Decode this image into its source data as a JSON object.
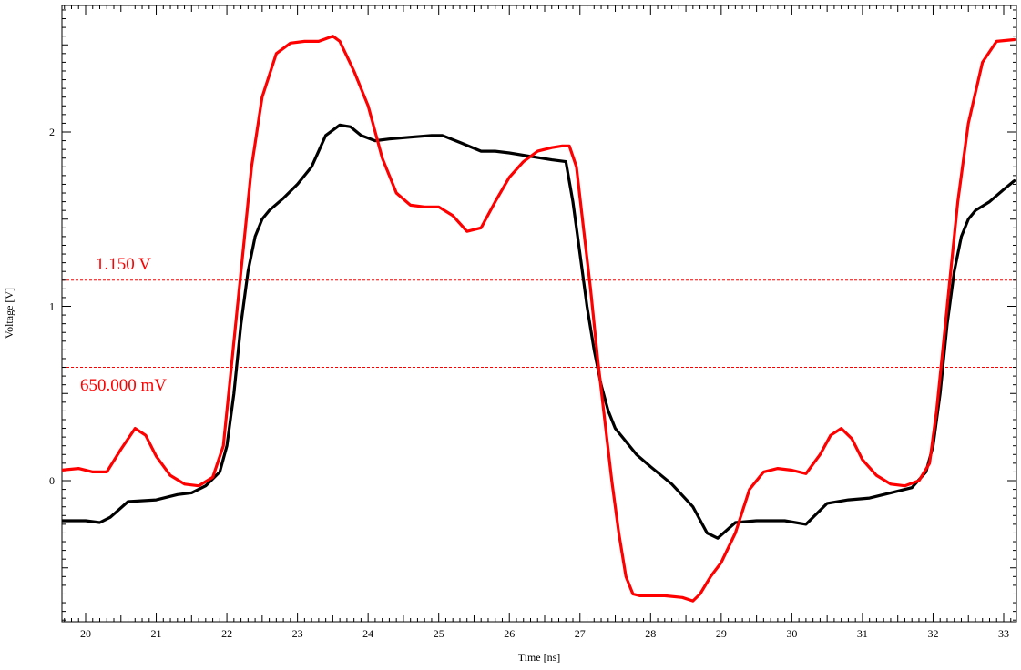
{
  "chart_data": {
    "type": "line",
    "xlabel": "Time [ns]",
    "ylabel": "Voltage [V]",
    "xlim": [
      19.65,
      33.15
    ],
    "ylim": [
      -0.8,
      2.7
    ],
    "x_ticks": [
      "20",
      "21",
      "22",
      "23",
      "24",
      "25",
      "26",
      "27",
      "28",
      "29",
      "30",
      "31",
      "32",
      "33"
    ],
    "y_ticks": [
      "0",
      "1",
      "2"
    ],
    "grid": false,
    "reference_lines": [
      {
        "value": 1.15,
        "label": "1.150 V",
        "color": "#ff0000"
      },
      {
        "value": 0.65,
        "label": "650.000 mV",
        "color": "#ff0000"
      }
    ],
    "series": [
      {
        "color": "#000000",
        "x": [
          19.65,
          20.0,
          20.2,
          20.35,
          20.6,
          21.0,
          21.3,
          21.5,
          21.7,
          21.9,
          22.0,
          22.1,
          22.2,
          22.3,
          22.4,
          22.5,
          22.6,
          22.8,
          23.0,
          23.2,
          23.4,
          23.6,
          23.75,
          23.9,
          24.1,
          24.3,
          24.6,
          24.9,
          25.05,
          25.3,
          25.6,
          25.8,
          26.0,
          26.3,
          26.6,
          26.8,
          26.9,
          27.0,
          27.1,
          27.2,
          27.3,
          27.4,
          27.5,
          27.6,
          27.8,
          28.0,
          28.3,
          28.6,
          28.8,
          28.95,
          29.2,
          29.5,
          29.9,
          30.2,
          30.5,
          30.8,
          31.1,
          31.4,
          31.7,
          31.9,
          32.0,
          32.1,
          32.2,
          32.3,
          32.4,
          32.5,
          32.6,
          32.8,
          33.0,
          33.15
        ],
        "y": [
          -0.23,
          -0.23,
          -0.24,
          -0.21,
          -0.12,
          -0.11,
          -0.08,
          -0.07,
          -0.03,
          0.05,
          0.2,
          0.5,
          0.9,
          1.2,
          1.4,
          1.5,
          1.55,
          1.62,
          1.7,
          1.8,
          1.98,
          2.04,
          2.03,
          1.98,
          1.95,
          1.96,
          1.97,
          1.98,
          1.98,
          1.94,
          1.89,
          1.89,
          1.88,
          1.86,
          1.84,
          1.83,
          1.6,
          1.3,
          1.0,
          0.75,
          0.55,
          0.4,
          0.3,
          0.25,
          0.15,
          0.08,
          -0.02,
          -0.15,
          -0.3,
          -0.33,
          -0.24,
          -0.23,
          -0.23,
          -0.25,
          -0.13,
          -0.11,
          -0.1,
          -0.07,
          -0.04,
          0.05,
          0.2,
          0.5,
          0.9,
          1.2,
          1.4,
          1.5,
          1.55,
          1.6,
          1.67,
          1.72
        ]
      },
      {
        "color": "#ff0000",
        "x": [
          19.65,
          19.9,
          20.1,
          20.3,
          20.5,
          20.7,
          20.85,
          21.0,
          21.2,
          21.4,
          21.6,
          21.8,
          21.95,
          22.05,
          22.15,
          22.25,
          22.35,
          22.5,
          22.7,
          22.9,
          23.1,
          23.3,
          23.5,
          23.6,
          23.8,
          24.0,
          24.2,
          24.4,
          24.6,
          24.8,
          25.0,
          25.2,
          25.4,
          25.6,
          25.8,
          26.0,
          26.2,
          26.4,
          26.6,
          26.75,
          26.85,
          26.95,
          27.05,
          27.15,
          27.25,
          27.35,
          27.45,
          27.55,
          27.65,
          27.75,
          27.85,
          28.0,
          28.2,
          28.45,
          28.6,
          28.7,
          28.85,
          29.0,
          29.2,
          29.4,
          29.6,
          29.8,
          30.0,
          30.2,
          30.4,
          30.55,
          30.7,
          30.85,
          31.0,
          31.2,
          31.4,
          31.6,
          31.8,
          31.95,
          32.05,
          32.15,
          32.25,
          32.35,
          32.5,
          32.7,
          32.9,
          33.15
        ],
        "y": [
          0.06,
          0.07,
          0.05,
          0.05,
          0.18,
          0.3,
          0.26,
          0.14,
          0.03,
          -0.02,
          -0.03,
          0.02,
          0.2,
          0.6,
          1.0,
          1.4,
          1.8,
          2.2,
          2.45,
          2.51,
          2.52,
          2.52,
          2.55,
          2.52,
          2.35,
          2.15,
          1.85,
          1.65,
          1.58,
          1.57,
          1.57,
          1.52,
          1.43,
          1.45,
          1.6,
          1.74,
          1.83,
          1.89,
          1.91,
          1.92,
          1.92,
          1.8,
          1.45,
          1.1,
          0.7,
          0.35,
          0.0,
          -0.3,
          -0.55,
          -0.65,
          -0.66,
          -0.66,
          -0.66,
          -0.67,
          -0.69,
          -0.65,
          -0.55,
          -0.47,
          -0.3,
          -0.05,
          0.05,
          0.07,
          0.06,
          0.04,
          0.15,
          0.26,
          0.3,
          0.24,
          0.12,
          0.03,
          -0.02,
          -0.03,
          0.0,
          0.1,
          0.4,
          0.8,
          1.2,
          1.6,
          2.05,
          2.4,
          2.52,
          2.53
        ]
      }
    ]
  }
}
